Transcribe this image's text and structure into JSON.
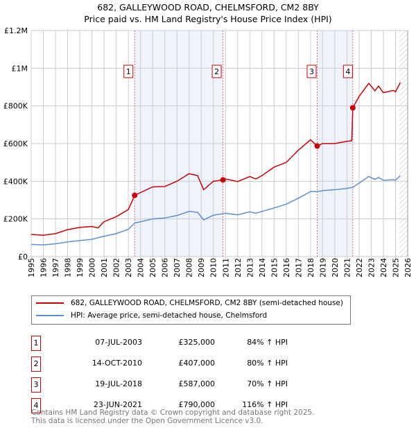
{
  "title": "682, GALLEYWOOD ROAD, CHELMSFORD, CM2 8BY",
  "subtitle": "Price paid vs. HM Land Registry's House Price Index (HPI)",
  "chart_data": {
    "type": "line",
    "xlim": [
      1995,
      2026
    ],
    "ylim": [
      0,
      1200000
    ],
    "x_ticks": [
      "1995",
      "1996",
      "1997",
      "1998",
      "1999",
      "2000",
      "2001",
      "2002",
      "2003",
      "2004",
      "2005",
      "2006",
      "2007",
      "2008",
      "2009",
      "2010",
      "2011",
      "2012",
      "2013",
      "2014",
      "2015",
      "2016",
      "2017",
      "2018",
      "2019",
      "2020",
      "2021",
      "2022",
      "2023",
      "2024",
      "2025",
      "2026"
    ],
    "y_ticks": [
      {
        "v": 0,
        "label": "£0"
      },
      {
        "v": 200000,
        "label": "£200K"
      },
      {
        "v": 400000,
        "label": "£400K"
      },
      {
        "v": 600000,
        "label": "£600K"
      },
      {
        "v": 800000,
        "label": "£800K"
      },
      {
        "v": 1000000,
        "label": "£1M"
      },
      {
        "v": 1200000,
        "label": "£1.2M"
      }
    ],
    "grid": true,
    "shaded_ranges": [
      [
        2003.52,
        2010.79
      ],
      [
        2018.55,
        2021.48
      ]
    ],
    "hatched_from": 2025.3,
    "series": [
      {
        "name": "682, GALLEYWOOD ROAD, CHELMSFORD, CM2 8BY (semi-detached house)",
        "color": "#cc0000",
        "x": [
          1995,
          1996,
          1996.5,
          1997,
          1998,
          1999,
          2000,
          2000.5,
          2001,
          2002,
          2003,
          2003.52,
          2004,
          2005,
          2006,
          2007,
          2008,
          2008.7,
          2009.2,
          2010,
          2010.79,
          2011,
          2012,
          2013,
          2013.5,
          2014,
          2015,
          2016,
          2017,
          2018,
          2018.55,
          2019,
          2020,
          2021,
          2021.4,
          2021.48,
          2022,
          2022.8,
          2023.3,
          2023.6,
          2024,
          2024.8,
          2025,
          2025.4
        ],
        "y": [
          118000,
          113000,
          118000,
          122000,
          143000,
          155000,
          160000,
          152000,
          185000,
          212000,
          250000,
          325000,
          340000,
          370000,
          372000,
          400000,
          440000,
          430000,
          355000,
          400000,
          407000,
          412000,
          398000,
          425000,
          412000,
          430000,
          475000,
          500000,
          565000,
          620000,
          587000,
          600000,
          600000,
          612000,
          615000,
          790000,
          850000,
          920000,
          880000,
          905000,
          870000,
          882000,
          875000,
          925000
        ]
      },
      {
        "name": "HPI: Average price, semi-detached house, Chelmsford",
        "color": "#5b8fd4",
        "x": [
          1995,
          1996,
          1997,
          1998,
          1999,
          2000,
          2001,
          2002,
          2003,
          2003.52,
          2004,
          2005,
          2006,
          2007,
          2008,
          2008.7,
          2009.2,
          2010,
          2010.79,
          2011,
          2012,
          2013,
          2013.5,
          2014,
          2015,
          2016,
          2017,
          2018,
          2018.55,
          2019,
          2020,
          2021,
          2021.48,
          2022,
          2022.8,
          2023.3,
          2023.6,
          2024,
          2024.8,
          2025,
          2025.4
        ],
        "y": [
          65000,
          62000,
          68000,
          78000,
          85000,
          92000,
          108000,
          122000,
          145000,
          178000,
          185000,
          200000,
          205000,
          218000,
          240000,
          235000,
          195000,
          220000,
          228000,
          230000,
          222000,
          238000,
          230000,
          240000,
          258000,
          278000,
          310000,
          345000,
          345000,
          350000,
          355000,
          362000,
          368000,
          390000,
          425000,
          410000,
          420000,
          405000,
          408000,
          405000,
          430000
        ]
      }
    ],
    "sales": [
      {
        "n": "1",
        "x": 2003.52,
        "price": 325000
      },
      {
        "n": "2",
        "x": 2010.79,
        "price": 407000
      },
      {
        "n": "3",
        "x": 2018.55,
        "price": 587000
      },
      {
        "n": "4",
        "x": 2021.48,
        "price": 790000
      }
    ]
  },
  "legend": {
    "property": "682, GALLEYWOOD ROAD, CHELMSFORD, CM2 8BY (semi-detached house)",
    "hpi": "HPI: Average price, semi-detached house, Chelmsford"
  },
  "transactions": [
    {
      "n": "1",
      "date": "07-JUL-2003",
      "price": "£325,000",
      "hpi": "84% ↑ HPI"
    },
    {
      "n": "2",
      "date": "14-OCT-2010",
      "price": "£407,000",
      "hpi": "80% ↑ HPI"
    },
    {
      "n": "3",
      "date": "19-JUL-2018",
      "price": "£587,000",
      "hpi": "70% ↑ HPI"
    },
    {
      "n": "4",
      "date": "23-JUN-2021",
      "price": "£790,000",
      "hpi": "116% ↑ HPI"
    }
  ],
  "footer": [
    "Contains HM Land Registry data © Crown copyright and database right 2025.",
    "This data is licensed under the Open Government Licence v3.0."
  ]
}
